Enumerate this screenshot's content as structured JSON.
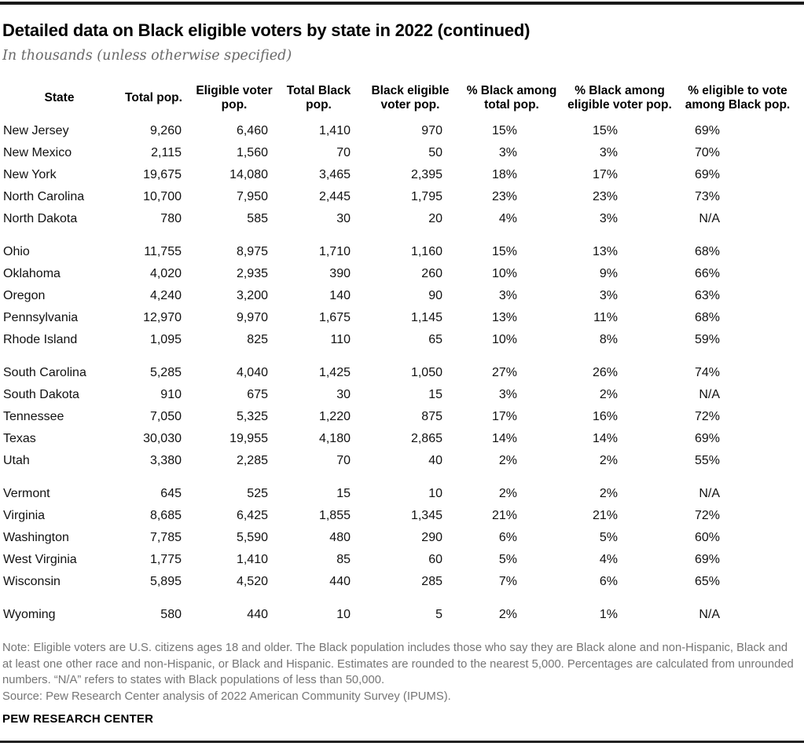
{
  "header": {
    "title": "Detailed data on Black eligible voters by state in 2022 (continued)",
    "subtitle": "In thousands (unless otherwise specified)"
  },
  "chart_data": {
    "type": "table",
    "title": "Detailed data on Black eligible voters by state in 2022 (continued)",
    "subtitle": "In thousands (unless otherwise specified)",
    "units": "thousands unless otherwise specified",
    "columns": [
      "State",
      "Total pop.",
      "Eligible voter pop.",
      "Total Black pop.",
      "Black eligible voter pop.",
      "% Black among total pop.",
      "% Black among eligible voter pop.",
      "% eligible to vote among Black pop."
    ],
    "groups": [
      [
        [
          "New Jersey",
          "9,260",
          "6,460",
          "1,410",
          "970",
          "15%",
          "15%",
          "69%"
        ],
        [
          "New Mexico",
          "2,115",
          "1,560",
          "70",
          "50",
          "3%",
          "3%",
          "70%"
        ],
        [
          "New York",
          "19,675",
          "14,080",
          "3,465",
          "2,395",
          "18%",
          "17%",
          "69%"
        ],
        [
          "North Carolina",
          "10,700",
          "7,950",
          "2,445",
          "1,795",
          "23%",
          "23%",
          "73%"
        ],
        [
          "North Dakota",
          "780",
          "585",
          "30",
          "20",
          "4%",
          "3%",
          "N/A"
        ]
      ],
      [
        [
          "Ohio",
          "11,755",
          "8,975",
          "1,710",
          "1,160",
          "15%",
          "13%",
          "68%"
        ],
        [
          "Oklahoma",
          "4,020",
          "2,935",
          "390",
          "260",
          "10%",
          "9%",
          "66%"
        ],
        [
          "Oregon",
          "4,240",
          "3,200",
          "140",
          "90",
          "3%",
          "3%",
          "63%"
        ],
        [
          "Pennsylvania",
          "12,970",
          "9,970",
          "1,675",
          "1,145",
          "13%",
          "11%",
          "68%"
        ],
        [
          "Rhode Island",
          "1,095",
          "825",
          "110",
          "65",
          "10%",
          "8%",
          "59%"
        ]
      ],
      [
        [
          "South Carolina",
          "5,285",
          "4,040",
          "1,425",
          "1,050",
          "27%",
          "26%",
          "74%"
        ],
        [
          "South Dakota",
          "910",
          "675",
          "30",
          "15",
          "3%",
          "2%",
          "N/A"
        ],
        [
          "Tennessee",
          "7,050",
          "5,325",
          "1,220",
          "875",
          "17%",
          "16%",
          "72%"
        ],
        [
          "Texas",
          "30,030",
          "19,955",
          "4,180",
          "2,865",
          "14%",
          "14%",
          "69%"
        ],
        [
          "Utah",
          "3,380",
          "2,285",
          "70",
          "40",
          "2%",
          "2%",
          "55%"
        ]
      ],
      [
        [
          "Vermont",
          "645",
          "525",
          "15",
          "10",
          "2%",
          "2%",
          "N/A"
        ],
        [
          "Virginia",
          "8,685",
          "6,425",
          "1,855",
          "1,345",
          "21%",
          "21%",
          "72%"
        ],
        [
          "Washington",
          "7,785",
          "5,590",
          "480",
          "290",
          "6%",
          "5%",
          "60%"
        ],
        [
          "West Virginia",
          "1,775",
          "1,410",
          "85",
          "60",
          "5%",
          "4%",
          "69%"
        ],
        [
          "Wisconsin",
          "5,895",
          "4,520",
          "440",
          "285",
          "7%",
          "6%",
          "65%"
        ]
      ],
      [
        [
          "Wyoming",
          "580",
          "440",
          "10",
          "5",
          "2%",
          "1%",
          "N/A"
        ]
      ]
    ]
  },
  "footer": {
    "note": "Note: Eligible voters are U.S. citizens ages 18 and older. The Black population includes those who say they are Black alone and non-Hispanic, Black and at least one other race and non-Hispanic, or Black and Hispanic. Estimates are rounded to the nearest 5,000. Percentages are calculated from unrounded numbers. “N/A” refers to states with Black populations of less than 50,000.",
    "source": "Source: Pew Research Center analysis of 2022 American Community Survey (IPUMS).",
    "brand": "PEW RESEARCH CENTER"
  },
  "colors": {
    "text": "#000000",
    "note_gray": "#757575",
    "subtitle_gray": "#696969",
    "rule_black": "#1a1a1a",
    "background": "#ffffff"
  }
}
